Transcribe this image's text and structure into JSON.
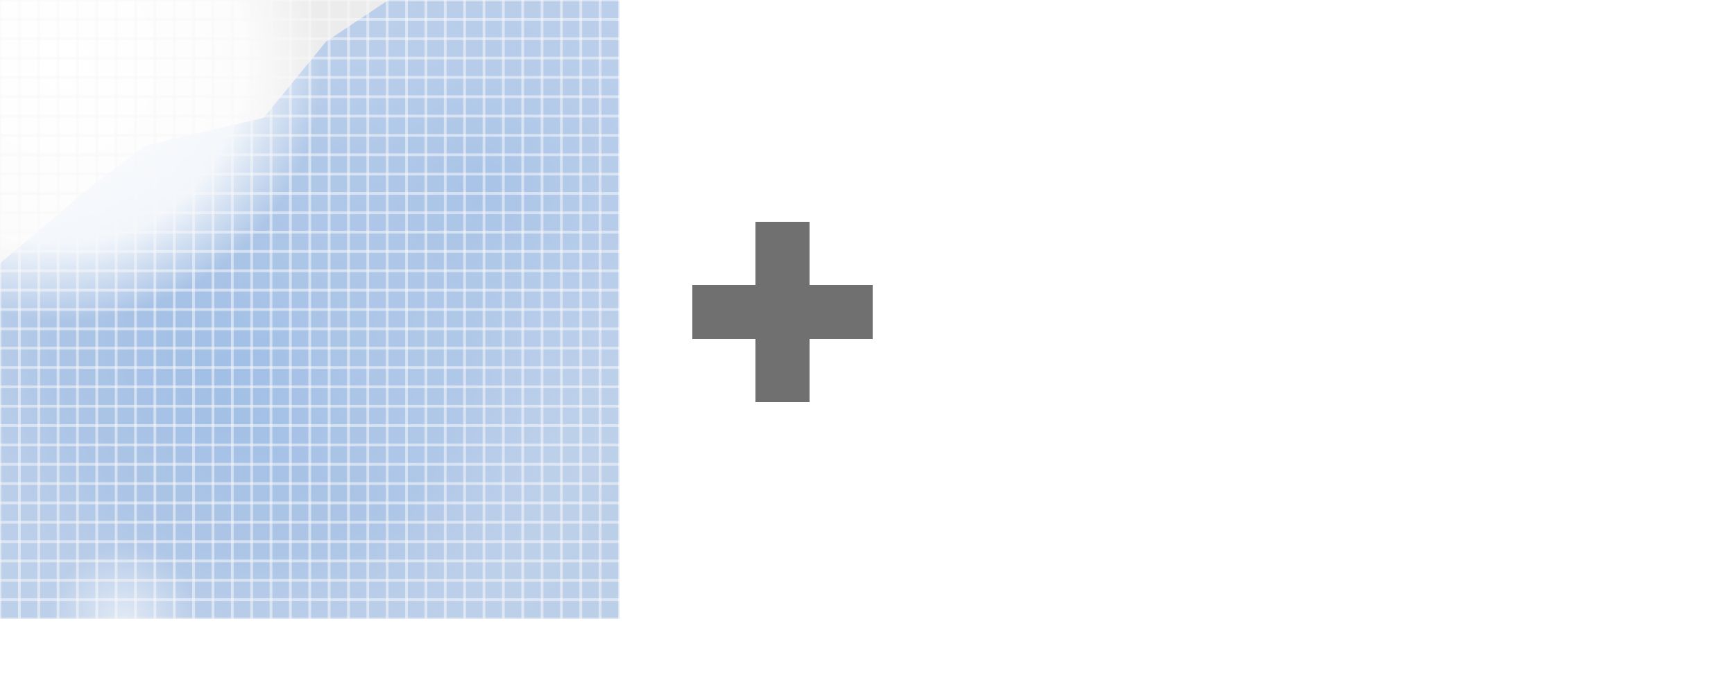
{
  "tile_panel": {
    "grid_columns": 32,
    "grid_rows": 32,
    "base_tile_color": "#e8e8e8",
    "tint_color": "#9bbbe4",
    "tile_gap_color": "#f7f8fa"
  },
  "add_control": {
    "icon": "plus-icon",
    "color": "#707070"
  }
}
